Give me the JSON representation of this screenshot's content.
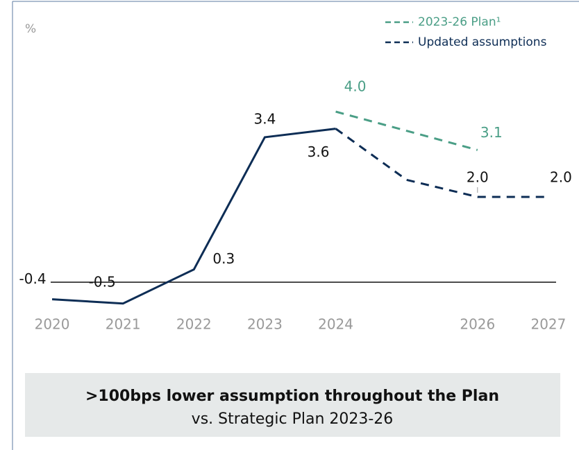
{
  "chart_data": {
    "type": "line",
    "unit_label": "%",
    "xlim": [
      2019.5,
      2027.5
    ],
    "xticks": [
      2020,
      2021,
      2022,
      2023,
      2024,
      2026,
      2027
    ],
    "ylim": [
      -1,
      5
    ],
    "baseline": 0,
    "legend": "upper right",
    "series": [
      {
        "color": "#0d2d55",
        "dash": false,
        "x": [
          2020,
          2021,
          2022,
          2023,
          2024
        ],
        "values": [
          -0.4,
          -0.5,
          0.3,
          3.4,
          3.6
        ],
        "value_labels": [
          "-0.4",
          "-0.5",
          "0.3",
          "3.4",
          "3.6"
        ]
      },
      {
        "name": "2023-26 Plan¹",
        "color": "#4a9e86",
        "dash": true,
        "x": [
          2024,
          2026
        ],
        "values": [
          4.0,
          3.1
        ],
        "value_labels": [
          "4.0",
          "3.1"
        ]
      },
      {
        "name": "Updated assumptions",
        "color": "#0d2d55",
        "dash": true,
        "x": [
          2024,
          2025,
          2026,
          2027
        ],
        "values": [
          3.6,
          2.4,
          2.0,
          2.0
        ],
        "value_labels": [
          null,
          null,
          "2.0",
          "2.0"
        ]
      }
    ],
    "callout": {
      "title": ">100bps lower assumption throughout the Plan",
      "subtitle": "vs. Strategic Plan 2023-26"
    }
  }
}
